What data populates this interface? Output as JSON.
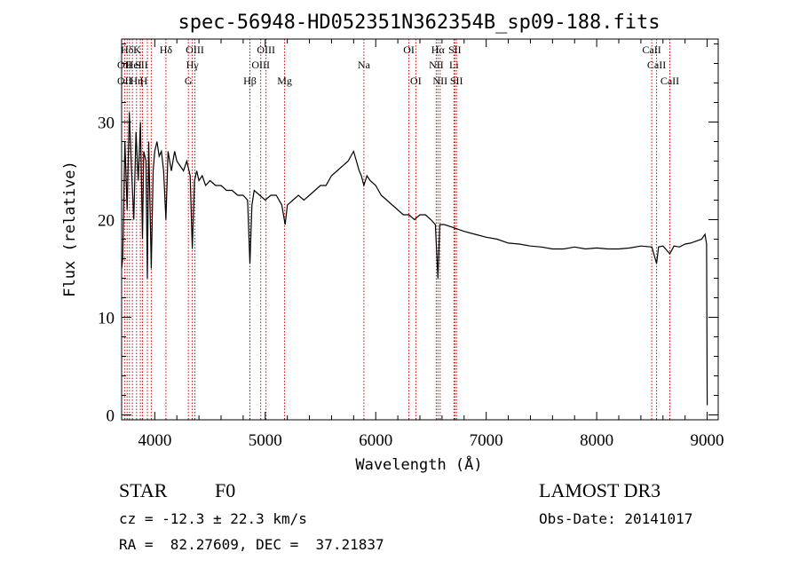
{
  "chart_data": {
    "type": "line",
    "title": "spec-56948-HD052351N362354B_sp09-188.fits",
    "xlabel": "Wavelength (Å)",
    "ylabel": "Flux (relative)",
    "xlim": [
      3700,
      9100
    ],
    "ylim": [
      -0.5,
      38.5
    ],
    "x_ticks": [
      4000,
      5000,
      6000,
      7000,
      8000,
      9000
    ],
    "x_tick_labels": [
      "4000",
      "5000",
      "6000",
      "7000",
      "8000",
      "9000"
    ],
    "y_ticks": [
      0,
      10,
      20,
      30
    ],
    "y_tick_labels": [
      "0",
      "10",
      "20",
      "30"
    ],
    "grid": false,
    "series": [
      {
        "name": "spectrum",
        "x": [
          3700,
          3710,
          3730,
          3750,
          3770,
          3790,
          3810,
          3830,
          3850,
          3870,
          3889,
          3900,
          3920,
          3933,
          3945,
          3968,
          3985,
          4000,
          4020,
          4040,
          4060,
          4080,
          4101,
          4120,
          4150,
          4180,
          4200,
          4230,
          4260,
          4290,
          4320,
          4340,
          4360,
          4380,
          4400,
          4430,
          4460,
          4500,
          4550,
          4600,
          4650,
          4700,
          4750,
          4800,
          4840,
          4861,
          4880,
          4900,
          4950,
          5000,
          5050,
          5100,
          5150,
          5180,
          5200,
          5250,
          5300,
          5350,
          5400,
          5450,
          5500,
          5550,
          5600,
          5650,
          5700,
          5750,
          5800,
          5850,
          5870,
          5893,
          5920,
          5950,
          6000,
          6050,
          6100,
          6150,
          6200,
          6250,
          6300,
          6350,
          6400,
          6450,
          6500,
          6540,
          6563,
          6580,
          6620,
          6700,
          6800,
          6900,
          7000,
          7100,
          7200,
          7300,
          7400,
          7500,
          7600,
          7700,
          7800,
          7900,
          8000,
          8100,
          8200,
          8300,
          8400,
          8500,
          8542,
          8560,
          8600,
          8662,
          8700,
          8750,
          8800,
          8850,
          8900,
          8950,
          8980,
          8995,
          9000
        ],
        "y": [
          15,
          16,
          28,
          21,
          31,
          25,
          20,
          29,
          24,
          30,
          18,
          27,
          26,
          14,
          28,
          15,
          25,
          27,
          28,
          26.5,
          27,
          25,
          20,
          27,
          25,
          27,
          26,
          25.5,
          25,
          26,
          24.5,
          17,
          24,
          25,
          24,
          24.5,
          23.5,
          24,
          23.5,
          23.5,
          23,
          23,
          22.5,
          22.5,
          22,
          15.5,
          21.5,
          23,
          22.5,
          22,
          22.5,
          22.5,
          21.5,
          19.5,
          21.5,
          22,
          22.5,
          22,
          22.5,
          23,
          23.5,
          23.5,
          24.5,
          25,
          25.5,
          26,
          27,
          25,
          24.5,
          23.5,
          24.5,
          24,
          23.5,
          22.5,
          22,
          21.5,
          21,
          20.5,
          20.5,
          20,
          20.5,
          20.5,
          20,
          19.5,
          14,
          19.5,
          19.5,
          19.2,
          18.8,
          18.5,
          18.2,
          18,
          17.6,
          17.5,
          17.3,
          17.2,
          17,
          17,
          17.2,
          17,
          17.1,
          17,
          17,
          17.1,
          17.3,
          17.2,
          15.5,
          17.2,
          17.3,
          16.5,
          17.3,
          17.2,
          17.5,
          17.6,
          17.8,
          18,
          18.5,
          17.5,
          1
        ]
      }
    ],
    "annotations": [
      {
        "label": "Hδ",
        "x": 3750,
        "row": 1
      },
      {
        "label": "OII",
        "x": 3727,
        "row": 2
      },
      {
        "label": "OII",
        "x": 3727,
        "row": 3
      },
      {
        "label": "K",
        "x": 3840,
        "row": 1
      },
      {
        "label": "HeI",
        "x": 3810,
        "row": 2
      },
      {
        "label": "Hη",
        "x": 3835,
        "row": 3
      },
      {
        "label": "SII",
        "x": 3880,
        "row": 2
      },
      {
        "label": "H",
        "x": 3900,
        "row": 3
      },
      {
        "label": "Hδ",
        "x": 4101,
        "row": 1
      },
      {
        "label": "OIII",
        "x": 4363,
        "row": 1
      },
      {
        "label": "Hγ",
        "x": 4340,
        "row": 2
      },
      {
        "label": "G",
        "x": 4304,
        "row": 3
      },
      {
        "label": "Hβ",
        "x": 4861,
        "row": 3
      },
      {
        "label": "OIII",
        "x": 5007,
        "row": 1
      },
      {
        "label": "OIII",
        "x": 4959,
        "row": 2
      },
      {
        "label": "Mg",
        "x": 5175,
        "row": 3
      },
      {
        "label": "Na",
        "x": 5893,
        "row": 2
      },
      {
        "label": "OI",
        "x": 6300,
        "row": 1
      },
      {
        "label": "OI",
        "x": 6363,
        "row": 3
      },
      {
        "label": "Hα",
        "x": 6563,
        "row": 1
      },
      {
        "label": "NII",
        "x": 6548,
        "row": 2
      },
      {
        "label": "NII",
        "x": 6583,
        "row": 3
      },
      {
        "label": "SII",
        "x": 6716,
        "row": 1
      },
      {
        "label": "Li",
        "x": 6708,
        "row": 2
      },
      {
        "label": "SII",
        "x": 6731,
        "row": 3
      },
      {
        "label": "CaII",
        "x": 8498,
        "row": 1
      },
      {
        "label": "CaII",
        "x": 8542,
        "row": 2
      },
      {
        "label": "CaII",
        "x": 8662,
        "row": 3
      }
    ],
    "marker_lines_x": [
      3727,
      3750,
      3771,
      3798,
      3835,
      3869,
      3889,
      3933,
      3968,
      4101,
      4304,
      4340,
      4363,
      4861,
      4959,
      5007,
      5175,
      5893,
      6300,
      6363,
      6548,
      6563,
      6583,
      6708,
      6716,
      6731,
      8498,
      8542,
      8662
    ],
    "marker_color": "#cc0000"
  },
  "info": {
    "object_class": "STAR",
    "subclass": "F0",
    "survey": "LAMOST DR3",
    "redshift": "cz = -12.3 ± 22.3 km/s",
    "obs_date": "Obs-Date: 20141017",
    "coords": "RA =  82.27609, DEC =  37.21837"
  }
}
